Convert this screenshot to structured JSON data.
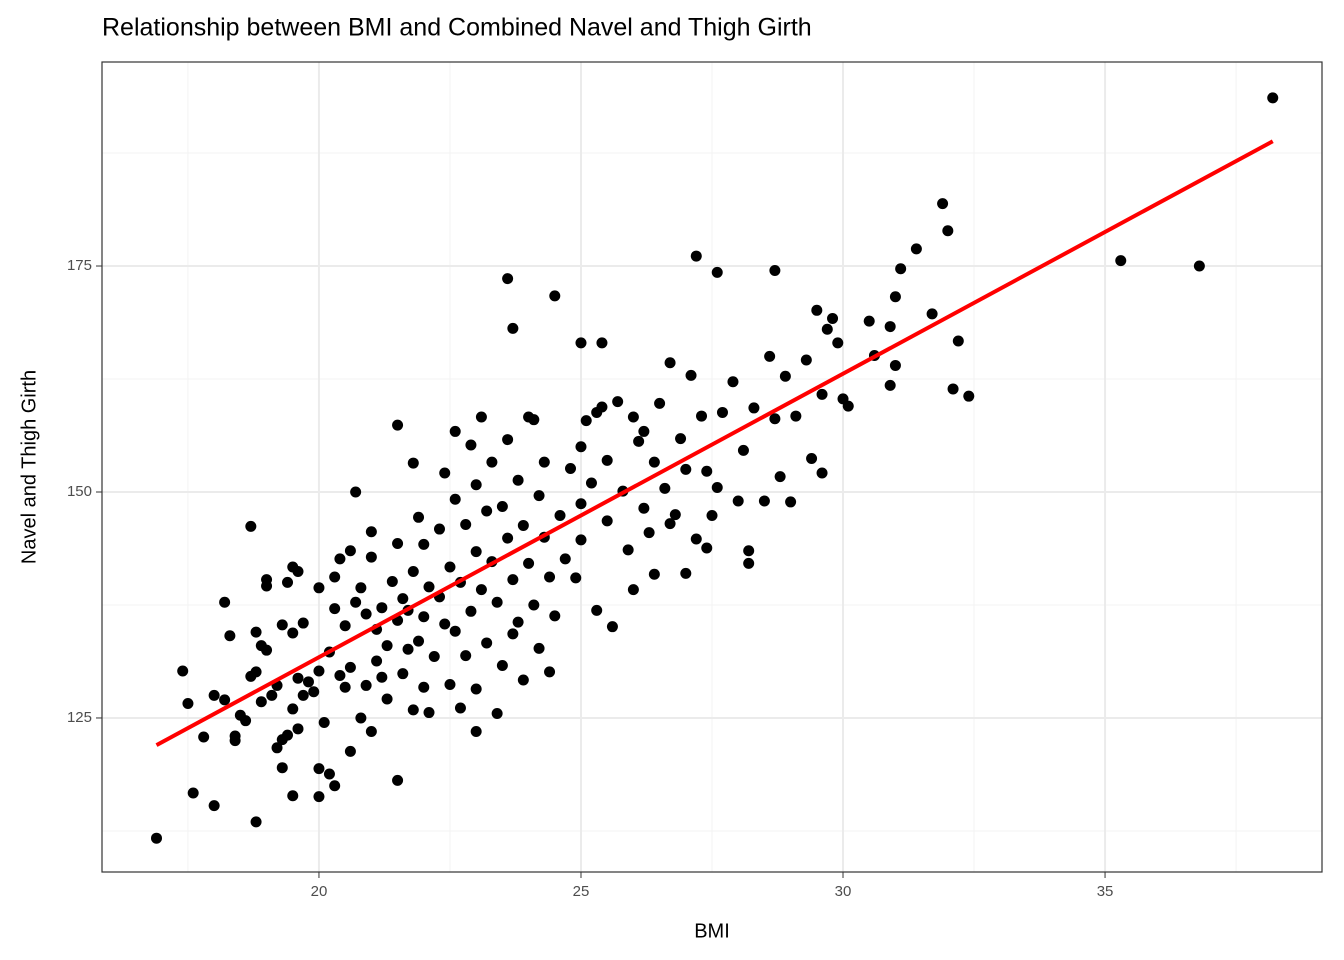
{
  "chart_data": {
    "type": "scatter",
    "title": "Relationship between BMI and Combined Navel and Thigh Girth",
    "x_label": "BMI",
    "y_label": "Navel and Thigh Girth",
    "xlim": [
      15.86,
      39.14
    ],
    "ylim": [
      107.96,
      197.57
    ],
    "xticks": [
      20,
      25,
      30,
      35
    ],
    "yticks": [
      125,
      150,
      175
    ],
    "xminor": [
      17.5,
      22.5,
      27.5,
      32.5,
      37.5
    ],
    "yminor": [
      112.5,
      137.5,
      162.5,
      187.5
    ],
    "grid": true,
    "series": [
      {
        "color": "#000000",
        "x": [
          16.9,
          17.4,
          17.5,
          17.6,
          18.0,
          17.8,
          18.0,
          18.2,
          18.7,
          18.8,
          18.3,
          19.0,
          19.5,
          19.3,
          19.5,
          20.0,
          20.0,
          20.3,
          20.2,
          20.7,
          21.5,
          21.5,
          21.8,
          23.6,
          24.5,
          23.7,
          25.0,
          25.4,
          27.2,
          27.6,
          28.7,
          31.9,
          32.0,
          31.4,
          31.1,
          31.0,
          31.7,
          32.2,
          32.4,
          32.1,
          35.3,
          36.8,
          38.2,
          23.0,
          22.7,
          23.1,
          22.6,
          18.2,
          18.4,
          18.4,
          18.5,
          18.6,
          18.7,
          18.8,
          18.9,
          19.0,
          19.1,
          19.2,
          19.2,
          19.3,
          19.4,
          19.5,
          19.5,
          19.6,
          19.7,
          19.6,
          19.8,
          19.9,
          20.0,
          20.0,
          19.4,
          19.0,
          19.3,
          18.9,
          19.6,
          19.7,
          18.8,
          20.1,
          20.2,
          20.3,
          20.3,
          20.4,
          20.5,
          20.5,
          20.6,
          20.6,
          20.7,
          20.8,
          20.8,
          20.9,
          21.0,
          21.0,
          21.0,
          21.1,
          21.1,
          21.2,
          21.3,
          21.3,
          21.4,
          21.5,
          21.5,
          21.6,
          21.6,
          21.7,
          21.8,
          21.8,
          21.9,
          22.0,
          22.0,
          22.0,
          22.1,
          21.9,
          20.9,
          20.4,
          21.2,
          21.7,
          20.6,
          22.1,
          22.2,
          22.3,
          22.3,
          22.4,
          22.5,
          22.5,
          22.6,
          22.6,
          22.7,
          22.8,
          22.8,
          22.9,
          23.0,
          23.0,
          23.0,
          23.1,
          23.2,
          23.2,
          23.3,
          23.3,
          23.4,
          23.5,
          23.5,
          23.6,
          23.6,
          23.7,
          23.8,
          23.8,
          23.9,
          23.9,
          24.0,
          24.0,
          24.1,
          24.2,
          24.2,
          24.3,
          24.3,
          24.4,
          24.4,
          23.4,
          22.4,
          23.7,
          24.1,
          22.9,
          24.5,
          24.6,
          24.7,
          24.8,
          24.9,
          25.0,
          25.0,
          25.0,
          25.1,
          25.2,
          25.3,
          25.4,
          25.5,
          25.5,
          25.6,
          25.7,
          25.8,
          25.9,
          26.0,
          26.0,
          26.1,
          26.2,
          26.3,
          26.4,
          26.4,
          26.5,
          26.6,
          26.7,
          26.8,
          26.9,
          27.0,
          27.0,
          27.1,
          27.2,
          27.3,
          27.4,
          27.4,
          26.2,
          25.3,
          26.7,
          27.5,
          27.6,
          27.7,
          27.9,
          28.0,
          28.1,
          28.2,
          28.3,
          28.5,
          28.6,
          28.8,
          28.9,
          29.0,
          29.1,
          29.3,
          29.4,
          29.5,
          29.6,
          29.7,
          29.8,
          29.9,
          30.0,
          30.1,
          28.7,
          29.6,
          28.2,
          30.5,
          30.6,
          30.9,
          30.9,
          31.0
        ],
        "values": [
          111.7,
          130.2,
          126.6,
          116.7,
          115.3,
          122.9,
          127.5,
          137.8,
          146.2,
          113.5,
          134.1,
          140.3,
          141.7,
          119.5,
          116.4,
          119.4,
          116.3,
          117.5,
          118.8,
          150,
          157.4,
          118.1,
          153.2,
          173.6,
          171.7,
          168.1,
          166.5,
          166.5,
          176.1,
          174.3,
          174.5,
          181.9,
          178.9,
          176.9,
          174.7,
          171.6,
          169.7,
          166.7,
          160.6,
          161.4,
          175.6,
          175,
          193.6,
          123.5,
          126.1,
          158.3,
          156.7,
          127,
          123,
          122.5,
          125.3,
          124.7,
          129.6,
          134.5,
          133,
          132.5,
          127.5,
          128.6,
          121.7,
          122.6,
          123.1,
          134.4,
          126,
          123.8,
          135.5,
          141.2,
          129,
          127.9,
          130.2,
          139.4,
          140,
          139.6,
          135.3,
          126.8,
          129.4,
          127.5,
          130.1,
          124.5,
          132.3,
          137.1,
          140.6,
          142.6,
          128.4,
          135.2,
          143.5,
          130.6,
          137.8,
          125,
          139.4,
          128.6,
          123.5,
          142.8,
          145.6,
          134.8,
          131.3,
          137.2,
          127.1,
          133,
          140.1,
          144.3,
          135.8,
          129.9,
          138.2,
          132.6,
          125.9,
          141.2,
          147.2,
          128.4,
          136.2,
          144.2,
          139.5,
          133.5,
          136.5,
          129.7,
          129.5,
          136.9,
          121.3,
          125.6,
          131.8,
          145.9,
          138.4,
          135.4,
          128.7,
          141.7,
          149.2,
          134.6,
          140,
          146.4,
          131.9,
          136.8,
          143.4,
          150.8,
          128.2,
          139.2,
          147.9,
          133.3,
          153.3,
          142.3,
          137.8,
          148.4,
          130.8,
          144.9,
          155.8,
          140.3,
          135.6,
          151.3,
          129.2,
          146.3,
          158.3,
          142.1,
          137.5,
          149.6,
          132.7,
          145,
          153.3,
          140.6,
          130.1,
          125.5,
          152.1,
          134.3,
          158,
          155.2,
          136.3,
          147.4,
          142.6,
          152.6,
          140.5,
          155,
          148.7,
          144.7,
          157.9,
          151,
          136.9,
          159.4,
          146.8,
          153.5,
          135.1,
          160,
          150.1,
          143.6,
          158.3,
          139.2,
          155.6,
          148.2,
          145.5,
          153.3,
          140.9,
          159.8,
          150.4,
          164.3,
          147.5,
          155.9,
          152.5,
          141,
          162.9,
          144.8,
          158.4,
          152.3,
          143.8,
          156.7,
          158.8,
          146.5,
          147.4,
          150.5,
          158.8,
          162.2,
          149,
          154.6,
          143.5,
          159.3,
          149,
          165,
          151.7,
          162.8,
          148.9,
          158.4,
          164.6,
          153.7,
          170.1,
          160.8,
          168,
          169.2,
          166.5,
          160.3,
          159.5,
          158.1,
          152.1,
          142.1,
          168.9,
          165.1,
          161.8,
          168.3,
          164
        ]
      }
    ],
    "fit": {
      "color": "#ff0000",
      "x": [
        16.9,
        38.2
      ],
      "values": [
        122,
        188.8
      ]
    }
  }
}
